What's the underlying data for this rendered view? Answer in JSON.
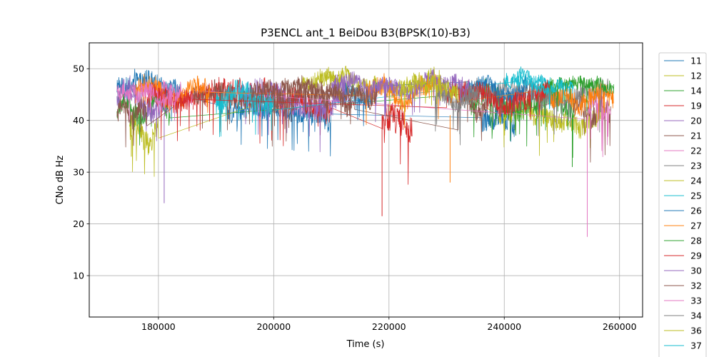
{
  "chart_data": {
    "type": "line",
    "title": "P3ENCL ant_1 BeiDou B3(BPSK(10)-B3)",
    "xlabel": "Time (s)",
    "ylabel": "CNo dB Hz",
    "xlim": [
      168000,
      264000
    ],
    "ylim": [
      2,
      55
    ],
    "xticks": [
      180000,
      200000,
      220000,
      240000,
      260000
    ],
    "yticks": [
      10,
      20,
      30,
      40,
      50
    ],
    "grid": true,
    "legend_position": "right-outside",
    "series": [
      {
        "name": "11",
        "color": "#1f77b4",
        "segments": [
          {
            "x0": 172800,
            "x1": 184000,
            "base": 46.5,
            "amp": 2.5
          },
          {
            "x0": 192000,
            "x1": 210000,
            "base": 41.5,
            "amp": 2.5
          },
          {
            "x0": 236000,
            "x1": 242000,
            "base": 39.5,
            "amp": 3.0
          }
        ]
      },
      {
        "name": "12",
        "color": "#bcbd22",
        "segments": [
          {
            "x0": 175000,
            "x1": 180000,
            "base": 37.5,
            "amp": 3.0
          },
          {
            "x0": 205000,
            "x1": 229000,
            "base": 47.0,
            "amp": 2.0
          },
          {
            "x0": 239000,
            "x1": 258000,
            "base": 41.0,
            "amp": 2.5
          }
        ]
      },
      {
        "name": "14",
        "color": "#2ca02c",
        "segments": [
          {
            "x0": 172800,
            "x1": 182000,
            "base": 42.0,
            "amp": 2.5
          },
          {
            "x0": 234000,
            "x1": 252000,
            "base": 43.5,
            "amp": 3.0
          }
        ]
      },
      {
        "name": "19",
        "color": "#d62728",
        "segments": [
          {
            "x0": 186000,
            "x1": 210000,
            "base": 44.0,
            "amp": 3.0
          },
          {
            "x0": 218800,
            "x1": 224000,
            "base": 39.0,
            "amp": 3.5
          }
        ]
      },
      {
        "name": "20",
        "color": "#9467bd",
        "segments": [
          {
            "x0": 172800,
            "x1": 182000,
            "base": 44.0,
            "amp": 3.0
          },
          {
            "x0": 194000,
            "x1": 213000,
            "base": 44.0,
            "amp": 3.0
          }
        ]
      },
      {
        "name": "21",
        "color": "#8c564b",
        "segments": [
          {
            "x0": 172800,
            "x1": 178000,
            "base": 41.5,
            "amp": 2.5
          },
          {
            "x0": 186000,
            "x1": 214000,
            "base": 44.5,
            "amp": 2.5
          },
          {
            "x0": 232000,
            "x1": 240000,
            "base": 43.0,
            "amp": 2.5
          },
          {
            "x0": 252000,
            "x1": 258500,
            "base": 42.0,
            "amp": 3.0
          }
        ]
      },
      {
        "name": "22",
        "color": "#e377c2",
        "segments": [
          {
            "x0": 172800,
            "x1": 186000,
            "base": 45.0,
            "amp": 2.0
          },
          {
            "x0": 254500,
            "x1": 258500,
            "base": 41.5,
            "amp": 3.0
          }
        ]
      },
      {
        "name": "23",
        "color": "#7f7f7f",
        "segments": [
          {
            "x0": 232000,
            "x1": 258000,
            "base": 45.5,
            "amp": 2.5
          }
        ]
      },
      {
        "name": "24",
        "color": "#bcbd22",
        "segments": [
          {
            "x0": 208000,
            "x1": 214000,
            "base": 48.0,
            "amp": 1.5
          }
        ]
      },
      {
        "name": "25",
        "color": "#17becf",
        "segments": [
          {
            "x0": 190000,
            "x1": 200000,
            "base": 43.5,
            "amp": 3.0
          },
          {
            "x0": 242000,
            "x1": 248000,
            "base": 47.5,
            "amp": 1.5
          }
        ]
      },
      {
        "name": "26",
        "color": "#1f77b4",
        "segments": [
          {
            "x0": 212000,
            "x1": 218000,
            "base": 44.5,
            "amp": 2.0
          },
          {
            "x0": 234000,
            "x1": 244000,
            "base": 46.0,
            "amp": 2.0
          }
        ]
      },
      {
        "name": "27",
        "color": "#ff7f0e",
        "segments": [
          {
            "x0": 176000,
            "x1": 189000,
            "base": 45.0,
            "amp": 2.5
          },
          {
            "x0": 216000,
            "x1": 231000,
            "base": 45.5,
            "amp": 2.5
          },
          {
            "x0": 248000,
            "x1": 259000,
            "base": 44.5,
            "amp": 2.5
          }
        ]
      },
      {
        "name": "28",
        "color": "#2ca02c",
        "segments": [
          {
            "x0": 246000,
            "x1": 259000,
            "base": 46.5,
            "amp": 1.5
          }
        ]
      },
      {
        "name": "29",
        "color": "#d62728",
        "segments": [
          {
            "x0": 178000,
            "x1": 186000,
            "base": 44.0,
            "amp": 2.5
          },
          {
            "x0": 230000,
            "x1": 248000,
            "base": 44.5,
            "amp": 2.5
          }
        ]
      },
      {
        "name": "30",
        "color": "#9467bd",
        "segments": [
          {
            "x0": 210000,
            "x1": 234000,
            "base": 46.5,
            "amp": 2.0
          }
        ]
      },
      {
        "name": "32",
        "color": "#8c564b",
        "segments": [
          {
            "x0": 196000,
            "x1": 218000,
            "base": 45.5,
            "amp": 2.0
          }
        ]
      },
      {
        "name": "33",
        "color": "#e377c2",
        "segments": [
          {
            "x0": 176000,
            "x1": 184000,
            "base": 44.5,
            "amp": 2.0
          }
        ]
      },
      {
        "name": "34",
        "color": "#7f7f7f",
        "segments": [
          {
            "x0": 228000,
            "x1": 236000,
            "base": 44.0,
            "amp": 2.5
          }
        ]
      },
      {
        "name": "36",
        "color": "#bcbd22",
        "segments": [
          {
            "x0": 222000,
            "x1": 232000,
            "base": 46.0,
            "amp": 2.0
          }
        ]
      },
      {
        "name": "37",
        "color": "#17becf",
        "segments": [
          {
            "x0": 240000,
            "x1": 252000,
            "base": 47.0,
            "amp": 1.5
          }
        ]
      }
    ],
    "annotations": [
      {
        "series": "20",
        "x": 181000,
        "low": 24
      },
      {
        "series": "19",
        "x": 218800,
        "low": 21.5
      },
      {
        "series": "22",
        "x": 254400,
        "low": 17.5
      },
      {
        "series": "27",
        "x": 230600,
        "low": 28
      },
      {
        "series": "28",
        "x": 251800,
        "low": 31
      },
      {
        "series": "12",
        "x": 175300,
        "low": 33
      }
    ]
  }
}
